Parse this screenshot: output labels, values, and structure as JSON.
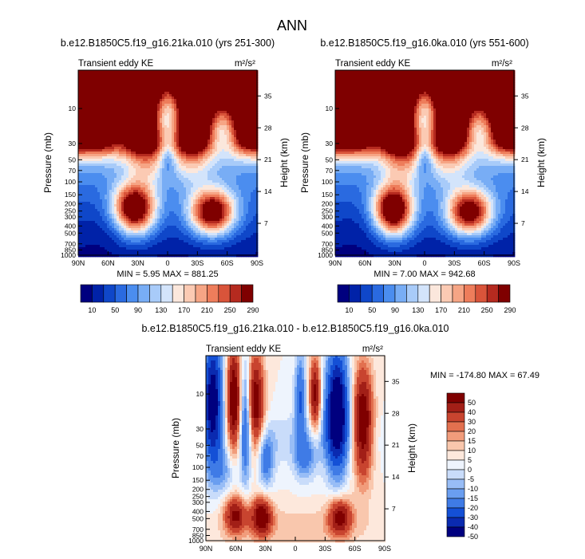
{
  "main_title": "ANN",
  "colors": {
    "diverging": [
      "#00007f",
      "#0022a8",
      "#0f47c9",
      "#2a6ae0",
      "#4b8def",
      "#78adf5",
      "#a8cbf9",
      "#d3e4fb",
      "#fbe7dc",
      "#fbcab3",
      "#f6a585",
      "#ee7d5b",
      "#d9543a",
      "#b52a1f",
      "#7f0000"
    ],
    "diff": [
      "#00007f",
      "#0a2ab0",
      "#1450d6",
      "#3f7be6",
      "#6a9ef0",
      "#98bdf6",
      "#c9dcfa",
      "#eef4fd",
      "#fde8dc",
      "#f9c7ad",
      "#f19c7b",
      "#e2704f",
      "#c8442f",
      "#a21f17",
      "#7f0000"
    ]
  },
  "chart_data": [
    {
      "type": "heatmap",
      "title": "b.e12.B1850C5.f19_g16.21ka.010 (yrs 251-300)",
      "left_label": "Transient eddy KE",
      "units": "m²/s²",
      "ylabel": "Pressure (mb)",
      "ylabel_right": "Height (km)",
      "x_ticks": [
        "90N",
        "60N",
        "30N",
        "0",
        "30S",
        "60S",
        "90S"
      ],
      "y_ticks": [
        "10",
        "30",
        "50",
        "70",
        "100",
        "150",
        "200",
        "250",
        "300",
        "400",
        "500",
        "700",
        "850",
        "1000"
      ],
      "y_ticks_right": [
        "35",
        "28",
        "21",
        "14",
        "7"
      ],
      "min": "5.95",
      "max": "881.25",
      "minmax_text": "MIN =   5.95  MAX = 881.25",
      "levels": [
        "10",
        "50",
        "90",
        "130",
        "170",
        "210",
        "250",
        "290"
      ],
      "field": "tek_a"
    },
    {
      "type": "heatmap",
      "title": "b.e12.B1850C5.f19_g16.0ka.010 (yrs 551-600)",
      "left_label": "Transient eddy KE",
      "units": "m²/s²",
      "ylabel": "Pressure (mb)",
      "ylabel_right": "Height (km)",
      "x_ticks": [
        "90N",
        "60N",
        "30N",
        "0",
        "30S",
        "60S",
        "90S"
      ],
      "y_ticks": [
        "10",
        "30",
        "50",
        "70",
        "100",
        "150",
        "200",
        "250",
        "300",
        "400",
        "500",
        "700",
        "850",
        "1000"
      ],
      "y_ticks_right": [
        "35",
        "28",
        "21",
        "14",
        "7"
      ],
      "min": "7.00",
      "max": "942.68",
      "minmax_text": "MIN =   7.00  MAX = 942.68",
      "levels": [
        "10",
        "50",
        "90",
        "130",
        "170",
        "210",
        "250",
        "290"
      ],
      "field": "tek_b"
    },
    {
      "type": "heatmap",
      "title": "b.e12.B1850C5.f19_g16.21ka.010 - b.e12.B1850C5.f19_g16.0ka.010",
      "left_label": "Transient eddy KE",
      "units": "m²/s²",
      "ylabel": "Pressure (mb)",
      "ylabel_right": "Height (km)",
      "x_ticks": [
        "90N",
        "60N",
        "30N",
        "0",
        "30S",
        "60S",
        "90S"
      ],
      "y_ticks": [
        "10",
        "30",
        "50",
        "70",
        "100",
        "150",
        "200",
        "250",
        "300",
        "400",
        "500",
        "700",
        "850",
        "1000"
      ],
      "y_ticks_right": [
        "35",
        "28",
        "21",
        "14",
        "7"
      ],
      "min": "-174.80",
      "max": "67.49",
      "minmax_text": "MIN = -174.80  MAX =  67.49",
      "levels": [
        "50",
        "40",
        "30",
        "20",
        "15",
        "10",
        "5",
        "0",
        "-5",
        "-10",
        "-15",
        "-20",
        "-30",
        "-40",
        "-50"
      ],
      "field": "diff"
    }
  ]
}
